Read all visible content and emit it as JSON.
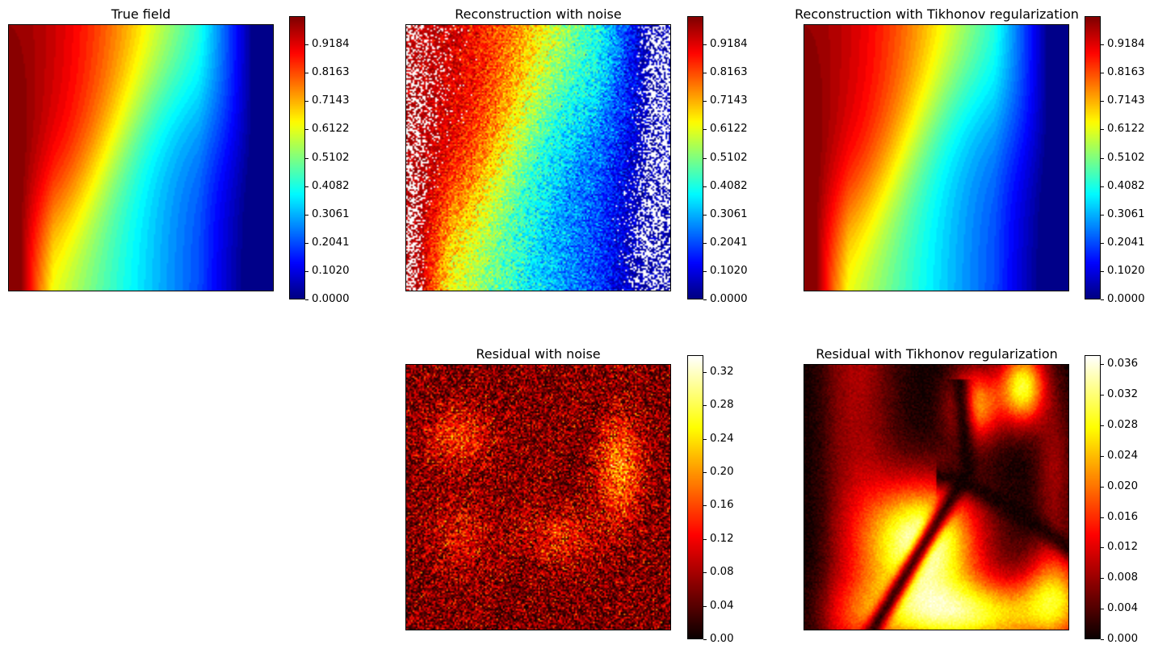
{
  "chart_data": [
    {
      "type": "heatmap",
      "title": "True field",
      "colormap": "jet",
      "xlabel": "",
      "ylabel": "",
      "axes_ticks": false,
      "colorbar": {
        "range": [
          0.0,
          1.0204
        ],
        "ticks": [
          "0.0000",
          "0.1020",
          "0.2041",
          "0.3061",
          "0.4082",
          "0.5102",
          "0.6122",
          "0.7143",
          "0.8163",
          "0.9184"
        ],
        "levels": 50
      },
      "description": "Smooth field: high (~1.0) dark red top-left, decreasing to ~0 dark blue along right edge; yellow/green band through middle and bottom, S-shaped contours"
    },
    {
      "type": "heatmap",
      "title": "Reconstruction with noise",
      "colormap": "jet",
      "xlabel": "",
      "ylabel": "",
      "axes_ticks": false,
      "colorbar": {
        "range": [
          0.0,
          1.0204
        ],
        "ticks": [
          "0.0000",
          "0.1020",
          "0.2041",
          "0.3061",
          "0.4082",
          "0.5102",
          "0.6122",
          "0.7143",
          "0.8163",
          "0.9184"
        ],
        "levels": 50
      },
      "description": "Noisy version of the true field; white (out-of-range) speckles in the top-left corner and along right edge"
    },
    {
      "type": "heatmap",
      "title": "Reconstruction with Tikhonov regularization",
      "colormap": "jet",
      "xlabel": "",
      "ylabel": "",
      "axes_ticks": false,
      "colorbar": {
        "range": [
          0.0,
          1.0204
        ],
        "ticks": [
          "0.0000",
          "0.1020",
          "0.2041",
          "0.3061",
          "0.4082",
          "0.5102",
          "0.6122",
          "0.7143",
          "0.8163",
          "0.9184"
        ],
        "levels": 50
      },
      "description": "Smooth reconstruction nearly identical to the true field"
    },
    {
      "type": "heatmap",
      "title": "Residual with noise",
      "colormap": "hot",
      "xlabel": "",
      "ylabel": "",
      "axes_ticks": false,
      "colorbar": {
        "range": [
          0.0,
          0.34
        ],
        "ticks": [
          "0.00",
          "0.04",
          "0.08",
          "0.12",
          "0.16",
          "0.20",
          "0.24",
          "0.28",
          "0.32"
        ]
      },
      "description": "Noisy residual, mostly 0.04-0.12; bright blobs (~0.2-0.3) at upper-left, right-center, lower-center and lower-left"
    },
    {
      "type": "heatmap",
      "title": "Residual with Tikhonov regularization",
      "colormap": "hot",
      "xlabel": "",
      "ylabel": "",
      "axes_ticks": false,
      "colorbar": {
        "range": [
          0.0,
          0.0372
        ],
        "ticks": [
          "0.000",
          "0.004",
          "0.008",
          "0.012",
          "0.016",
          "0.020",
          "0.024",
          "0.028",
          "0.032",
          "0.036"
        ]
      },
      "description": "Smooth residual; peak (~0.037) white-yellow blob lower-center-left, bright yellow along bottom, yellow/orange lobes top-right, dark troughs forming curved bands"
    }
  ],
  "panels": {
    "true_field": {
      "title": "True field",
      "ticks": [
        "0.9184",
        "0.8163",
        "0.7143",
        "0.6122",
        "0.5102",
        "0.4082",
        "0.3061",
        "0.2041",
        "0.1020",
        "0.0000"
      ]
    },
    "recon_noise": {
      "title": "Reconstruction with noise",
      "ticks": [
        "0.9184",
        "0.8163",
        "0.7143",
        "0.6122",
        "0.5102",
        "0.4082",
        "0.3061",
        "0.2041",
        "0.1020",
        "0.0000"
      ]
    },
    "recon_tikhonov": {
      "title": "Reconstruction with Tikhonov regularization",
      "ticks": [
        "0.9184",
        "0.8163",
        "0.7143",
        "0.6122",
        "0.5102",
        "0.4082",
        "0.3061",
        "0.2041",
        "0.1020",
        "0.0000"
      ]
    },
    "resid_noise": {
      "title": "Residual with noise",
      "ticks": [
        "0.32",
        "0.28",
        "0.24",
        "0.20",
        "0.16",
        "0.12",
        "0.08",
        "0.04",
        "0.00"
      ]
    },
    "resid_tikhonov": {
      "title": "Residual with Tikhonov regularization",
      "ticks": [
        "0.036",
        "0.032",
        "0.028",
        "0.024",
        "0.020",
        "0.016",
        "0.012",
        "0.008",
        "0.004",
        "0.000"
      ]
    }
  }
}
